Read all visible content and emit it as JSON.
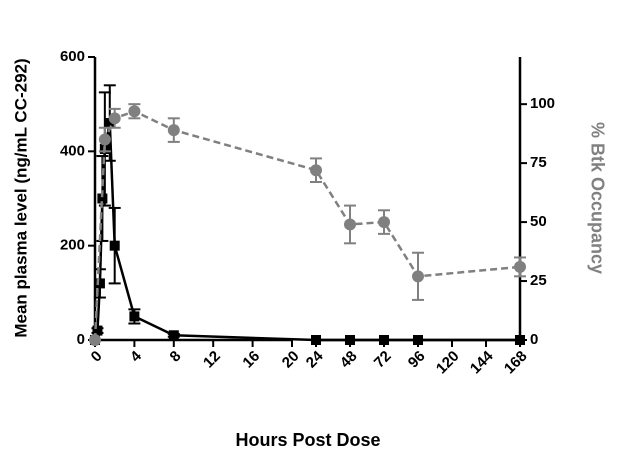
{
  "chart_data": {
    "type": "line",
    "x_label": "Hours Post Dose",
    "y_label": "Mean plasma level (ng/mL CC-292)",
    "y2_label": "% Btk Occupancy",
    "xticks": [
      0,
      4,
      8,
      12,
      16,
      20,
      24,
      48,
      72,
      96,
      120,
      144,
      168
    ],
    "xbreak": [
      20,
      24
    ],
    "ylim": [
      0,
      600
    ],
    "yticks": [
      0,
      200,
      400,
      600
    ],
    "y2lim": [
      0,
      120
    ],
    "y2ticks": [
      0,
      25,
      50,
      75,
      100
    ],
    "series": [
      {
        "color": "#000000",
        "marker": "square",
        "dashed": false,
        "x": [
          0,
          0.25,
          0.5,
          0.75,
          1,
          1.5,
          2,
          4,
          8,
          24,
          48,
          72,
          96,
          168
        ],
        "values": [
          0,
          20,
          120,
          300,
          405,
          460,
          200,
          50,
          10,
          0,
          0,
          0,
          0,
          0
        ],
        "errors": [
          0,
          5,
          30,
          90,
          120,
          80,
          80,
          15,
          3,
          0,
          0,
          0,
          0,
          0
        ]
      },
      {
        "color": "#808080",
        "marker": "circle",
        "dashed": true,
        "axis": "y2",
        "x": [
          0,
          1,
          2,
          4,
          8,
          24,
          48,
          72,
          96,
          168
        ],
        "values": [
          0,
          85,
          94,
          97,
          89,
          72,
          49,
          50,
          27,
          31
        ],
        "errors": [
          0,
          5,
          4,
          3,
          5,
          5,
          8,
          5,
          10,
          4
        ]
      }
    ]
  }
}
